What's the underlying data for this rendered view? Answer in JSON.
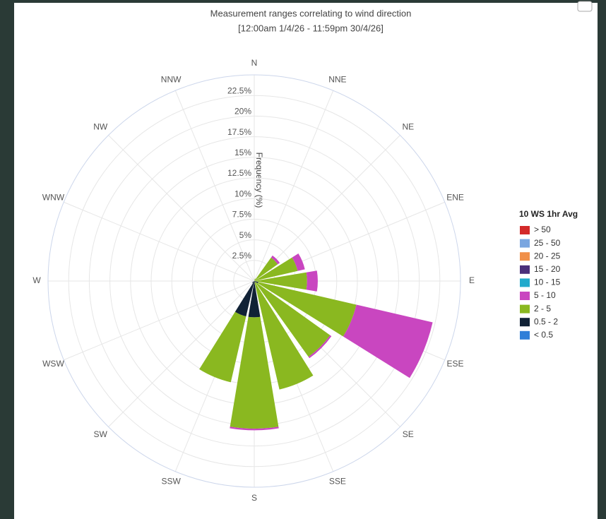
{
  "chart_data": {
    "type": "windrose",
    "title": "Measurement ranges correlating to wind direction",
    "subtitle": "[12:00am 1/4/26 - 11:59pm 30/4/26]",
    "radial_axis_label": "Frequency (%)",
    "legend_title": "10 WS 1hr Avg",
    "legend_position": "right",
    "categories": [
      "N",
      "NNE",
      "NE",
      "ENE",
      "E",
      "ESE",
      "SE",
      "SSE",
      "S",
      "SSW",
      "SW",
      "WSW",
      "W",
      "WNW",
      "NW",
      "NNW"
    ],
    "ylim": [
      0,
      25
    ],
    "yticks": [
      {
        "value": 2.5,
        "label": "2.5%"
      },
      {
        "value": 5,
        "label": "5%"
      },
      {
        "value": 7.5,
        "label": "7.5%"
      },
      {
        "value": 10,
        "label": "10%"
      },
      {
        "value": 12.5,
        "label": "12.5%"
      },
      {
        "value": 15,
        "label": "15%"
      },
      {
        "value": 17.5,
        "label": "17.5%"
      },
      {
        "value": 20,
        "label": "20%"
      },
      {
        "value": 22.5,
        "label": "22.5%"
      }
    ],
    "grid": true,
    "series": [
      {
        "name": "> 50",
        "color": "#d32a2a",
        "values": [
          0,
          0,
          0,
          0,
          0,
          0,
          0,
          0,
          0,
          0,
          0,
          0,
          0,
          0,
          0,
          0
        ]
      },
      {
        "name": "25 - 50",
        "color": "#7aa6e0",
        "values": [
          0,
          0,
          0,
          0,
          0,
          0,
          0,
          0,
          0,
          0,
          0,
          0,
          0,
          0,
          0,
          0
        ]
      },
      {
        "name": "20 - 25",
        "color": "#f0904a",
        "values": [
          0,
          0,
          0,
          0,
          0,
          0,
          0,
          0,
          0,
          0,
          0,
          0,
          0,
          0,
          0,
          0
        ]
      },
      {
        "name": "15 - 20",
        "color": "#4a2f7a",
        "values": [
          0,
          0,
          0,
          0,
          0,
          0,
          0,
          0,
          0,
          0,
          0,
          0,
          0,
          0,
          0,
          0
        ]
      },
      {
        "name": "10 - 15",
        "color": "#22aacc",
        "values": [
          0,
          0,
          0,
          0,
          0,
          0,
          0,
          0,
          0,
          0,
          0,
          0,
          0,
          0,
          0,
          0
        ]
      },
      {
        "name": "5 - 10",
        "color": "#c946c0",
        "values": [
          0,
          0,
          0.3,
          0.9,
          1.3,
          9.5,
          0.2,
          0,
          0.2,
          0,
          0,
          0,
          0,
          0,
          0,
          0
        ]
      },
      {
        "name": "2 - 5",
        "color": "#8ab820",
        "values": [
          0,
          0.3,
          3.5,
          5.4,
          6.4,
          12.2,
          11.1,
          13.3,
          13.5,
          8.2,
          0,
          0,
          0,
          0,
          0,
          0
        ]
      },
      {
        "name": "0.5 - 2",
        "color": "#112236",
        "values": [
          0,
          0,
          0,
          0,
          0,
          0.5,
          0.2,
          0.2,
          4.4,
          4.4,
          0.3,
          0,
          0,
          0,
          0,
          0
        ]
      },
      {
        "name": "< 0.5",
        "color": "#2f7fd8",
        "values": [
          0,
          0,
          0,
          0,
          0,
          0,
          0,
          0,
          0,
          0,
          0,
          0,
          0,
          0,
          0,
          0
        ]
      }
    ]
  }
}
